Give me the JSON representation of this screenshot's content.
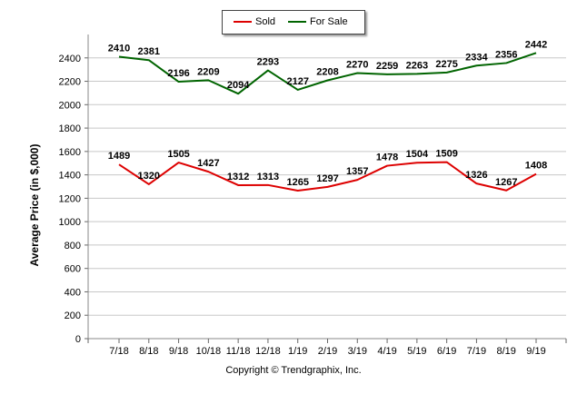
{
  "chart_data": {
    "type": "line",
    "categories": [
      "7/18",
      "8/18",
      "9/18",
      "10/18",
      "11/18",
      "12/18",
      "1/19",
      "2/19",
      "3/19",
      "4/19",
      "5/19",
      "6/19",
      "7/19",
      "8/19",
      "9/19"
    ],
    "series": [
      {
        "name": "Sold",
        "color": "#dd0000",
        "values": [
          1489,
          1320,
          1505,
          1427,
          1312,
          1313,
          1265,
          1297,
          1357,
          1478,
          1504,
          1509,
          1326,
          1267,
          1408
        ]
      },
      {
        "name": "For Sale",
        "color": "#006400",
        "values": [
          2410,
          2381,
          2196,
          2209,
          2094,
          2293,
          2127,
          2208,
          2270,
          2259,
          2263,
          2275,
          2334,
          2356,
          2442
        ]
      }
    ],
    "title": "",
    "xlabel": "",
    "ylabel": "Average Price (in $,000)",
    "ylim": [
      0,
      2600
    ],
    "yticks": [
      0,
      200,
      400,
      600,
      800,
      1000,
      1200,
      1400,
      1600,
      1800,
      2000,
      2200,
      2400
    ],
    "grid": true,
    "legend_position": "top-center"
  },
  "legend": {
    "sold": "Sold",
    "for_sale": "For Sale"
  },
  "copyright": "Copyright © Trendgraphix, Inc."
}
